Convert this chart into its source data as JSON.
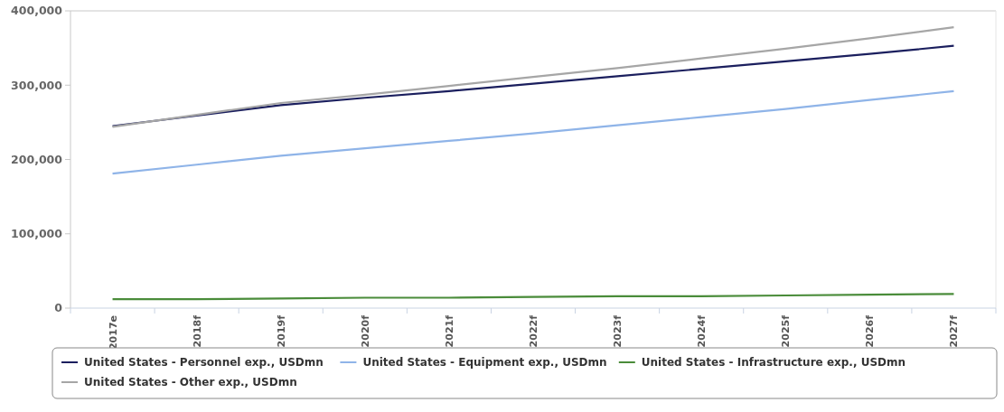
{
  "chart_data": {
    "type": "line",
    "categories": [
      "2017e",
      "2018f",
      "2019f",
      "2020f",
      "2021f",
      "2022f",
      "2023f",
      "2024f",
      "2025f",
      "2026f",
      "2027f"
    ],
    "series": [
      {
        "name": "United States - Personnel exp., USDmn",
        "color": "#1b1f5e",
        "values": [
          245000,
          259000,
          273000,
          283000,
          292000,
          302000,
          312000,
          322000,
          332000,
          342000,
          353000
        ]
      },
      {
        "name": "United States - Equipment exp., USDmn",
        "color": "#8fb4e8",
        "values": [
          181000,
          193000,
          205000,
          215000,
          225000,
          235000,
          246000,
          257000,
          268000,
          280000,
          292000
        ]
      },
      {
        "name": "United States - Infrastructure exp., USDmn",
        "color": "#4a8c3a",
        "values": [
          12000,
          12000,
          13000,
          14000,
          14000,
          15000,
          16000,
          16000,
          17000,
          18000,
          19000
        ]
      },
      {
        "name": "United States - Other exp., USDmn",
        "color": "#a6a6a6",
        "values": [
          244000,
          260000,
          276000,
          287000,
          299000,
          311000,
          323000,
          336000,
          349000,
          363000,
          378000
        ]
      }
    ],
    "ylim": [
      0,
      400000
    ],
    "yticks": [
      {
        "value": 0,
        "label": "0"
      },
      {
        "value": 100000,
        "label": "100,000"
      },
      {
        "value": 200000,
        "label": "200,000"
      },
      {
        "value": 300000,
        "label": "300,000"
      },
      {
        "value": 400000,
        "label": "400,000"
      }
    ],
    "grid": false,
    "legend": "bottom",
    "marker": "none",
    "line_style": "solid"
  }
}
